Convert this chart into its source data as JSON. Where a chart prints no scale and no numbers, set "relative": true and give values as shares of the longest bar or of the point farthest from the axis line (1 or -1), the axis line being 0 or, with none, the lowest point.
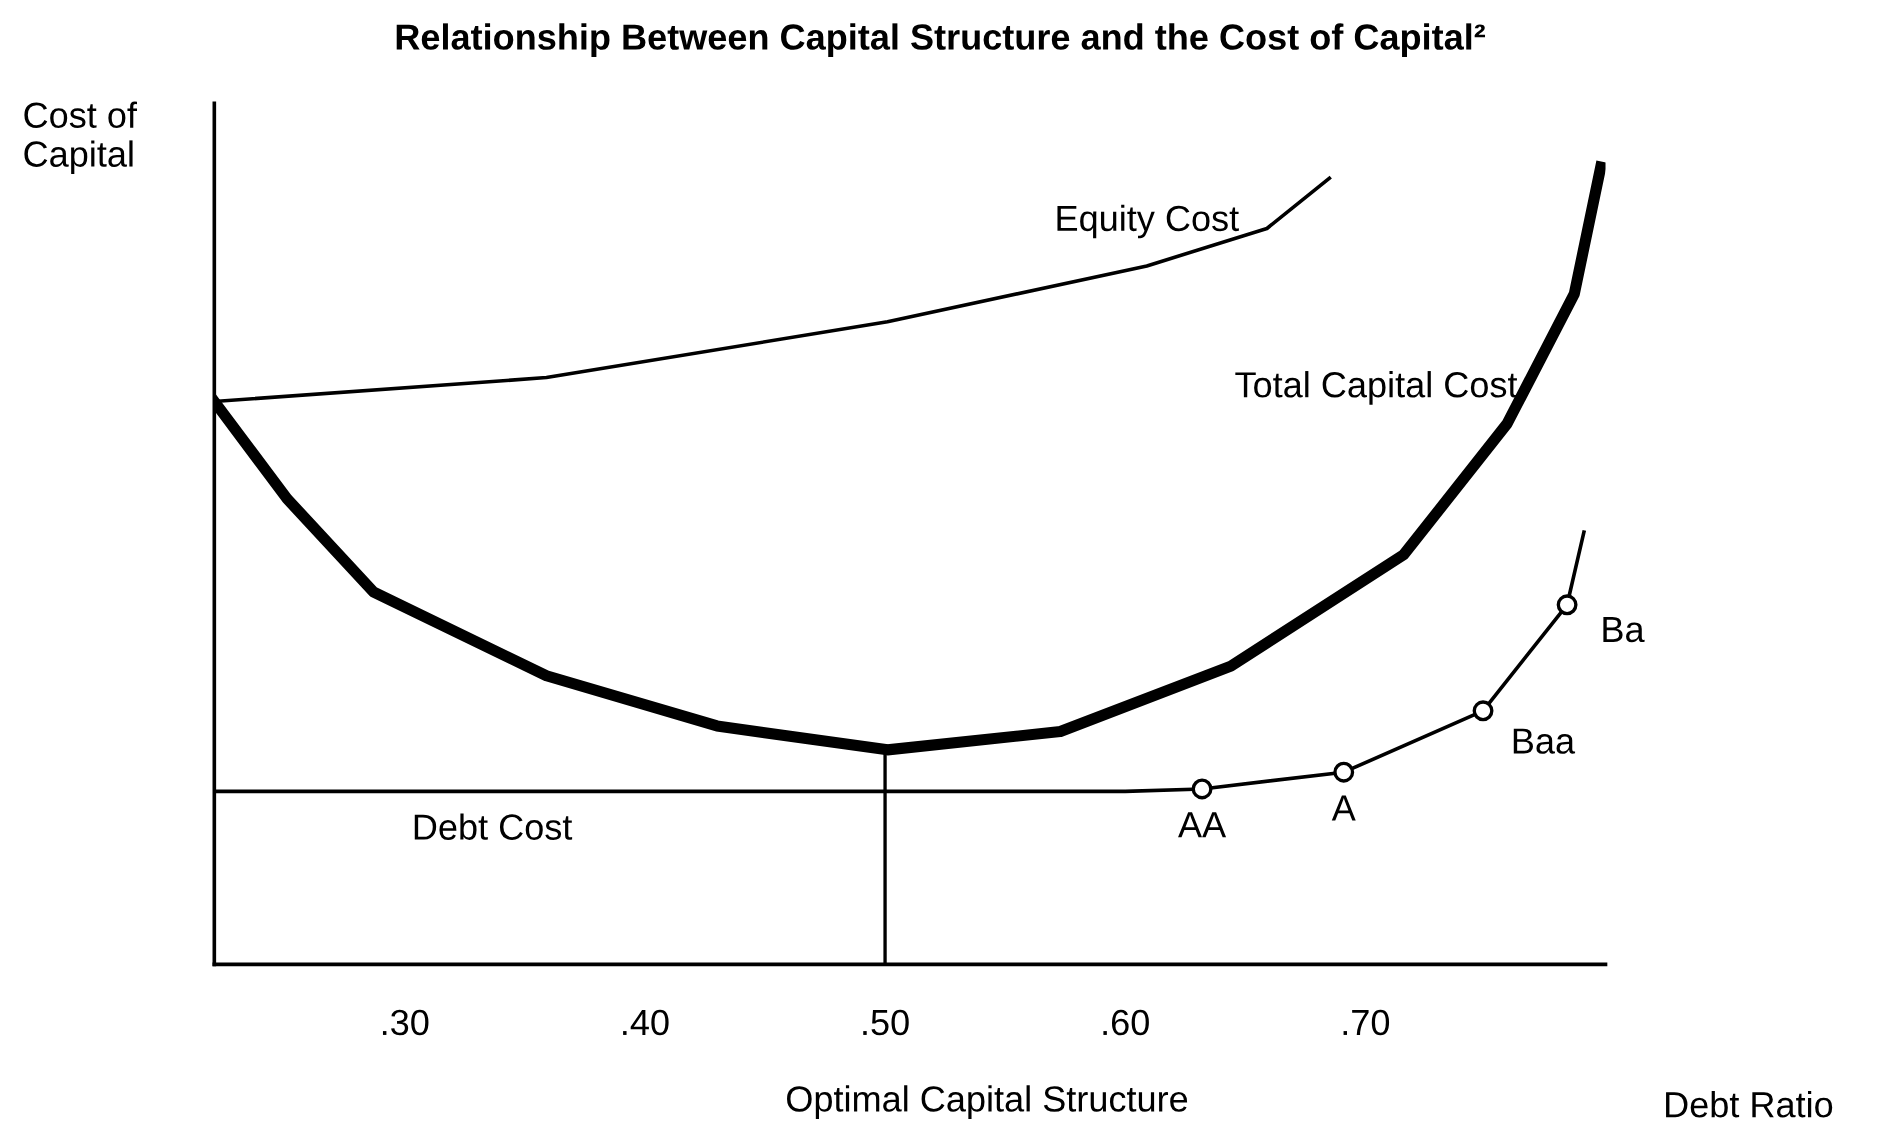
{
  "chart_data": {
    "type": "line",
    "title": "Relationship Between Capital Structure and the Cost of Capital²",
    "xlabel": "Debt Ratio",
    "ylabel": "Cost of\nCapital",
    "relative": true,
    "tick_labels": "x",
    "grid": false,
    "legend": false,
    "xlim": [
      0.2207,
      0.8
    ],
    "xticks": [
      {
        "value": 0.3,
        "label": ".30"
      },
      {
        "value": 0.4,
        "label": ".40"
      },
      {
        "value": 0.5,
        "label": ".50"
      },
      {
        "value": 0.6,
        "label": ".60"
      },
      {
        "value": 0.7,
        "label": ".70"
      }
    ],
    "series": [
      {
        "name": "Equity Cost",
        "color": "#000000",
        "x": [
          0.2207,
          0.359,
          0.501,
          0.609,
          0.659,
          0.685
        ],
        "values": [
          0.706,
          0.736,
          0.806,
          0.876,
          0.923,
          0.986
        ]
      },
      {
        "name": "Total Capital Cost",
        "color": "#000000",
        "x": [
          0.2207,
          0.251,
          0.287,
          0.359,
          0.43,
          0.501,
          0.573,
          0.644,
          0.716,
          0.759,
          0.787,
          0.798
        ],
        "values": [
          0.706,
          0.584,
          0.467,
          0.362,
          0.299,
          0.269,
          0.292,
          0.374,
          0.514,
          0.678,
          0.841,
          1.0
        ]
      },
      {
        "name": "Debt Cost",
        "color": "#000000",
        "x": [
          0.2207,
          0.5,
          0.6,
          0.632,
          0.691,
          0.749,
          0.784,
          0.791
        ],
        "values": [
          0.217,
          0.217,
          0.217,
          0.22,
          0.241,
          0.318,
          0.451,
          0.542
        ]
      },
      {
        "type": "scatter",
        "marker": "circle",
        "color": "#000000",
        "x": [
          0.632,
          0.691,
          0.749,
          0.784
        ],
        "values": [
          0.22,
          0.241,
          0.318,
          0.451
        ]
      }
    ],
    "ref_lines": [
      {
        "axis": "x",
        "value": 0.5,
        "color": "#000000"
      }
    ],
    "annotations": [
      "Optimal Capital Structure",
      {
        "text": "AA",
        "x": 0.632,
        "y": 0.22
      },
      {
        "text": "A",
        "x": 0.691,
        "y": 0.241
      },
      {
        "text": "Baa",
        "x": 0.749,
        "y": 0.318
      },
      {
        "text": "Ba",
        "x": 0.784,
        "y": 0.451
      }
    ]
  }
}
